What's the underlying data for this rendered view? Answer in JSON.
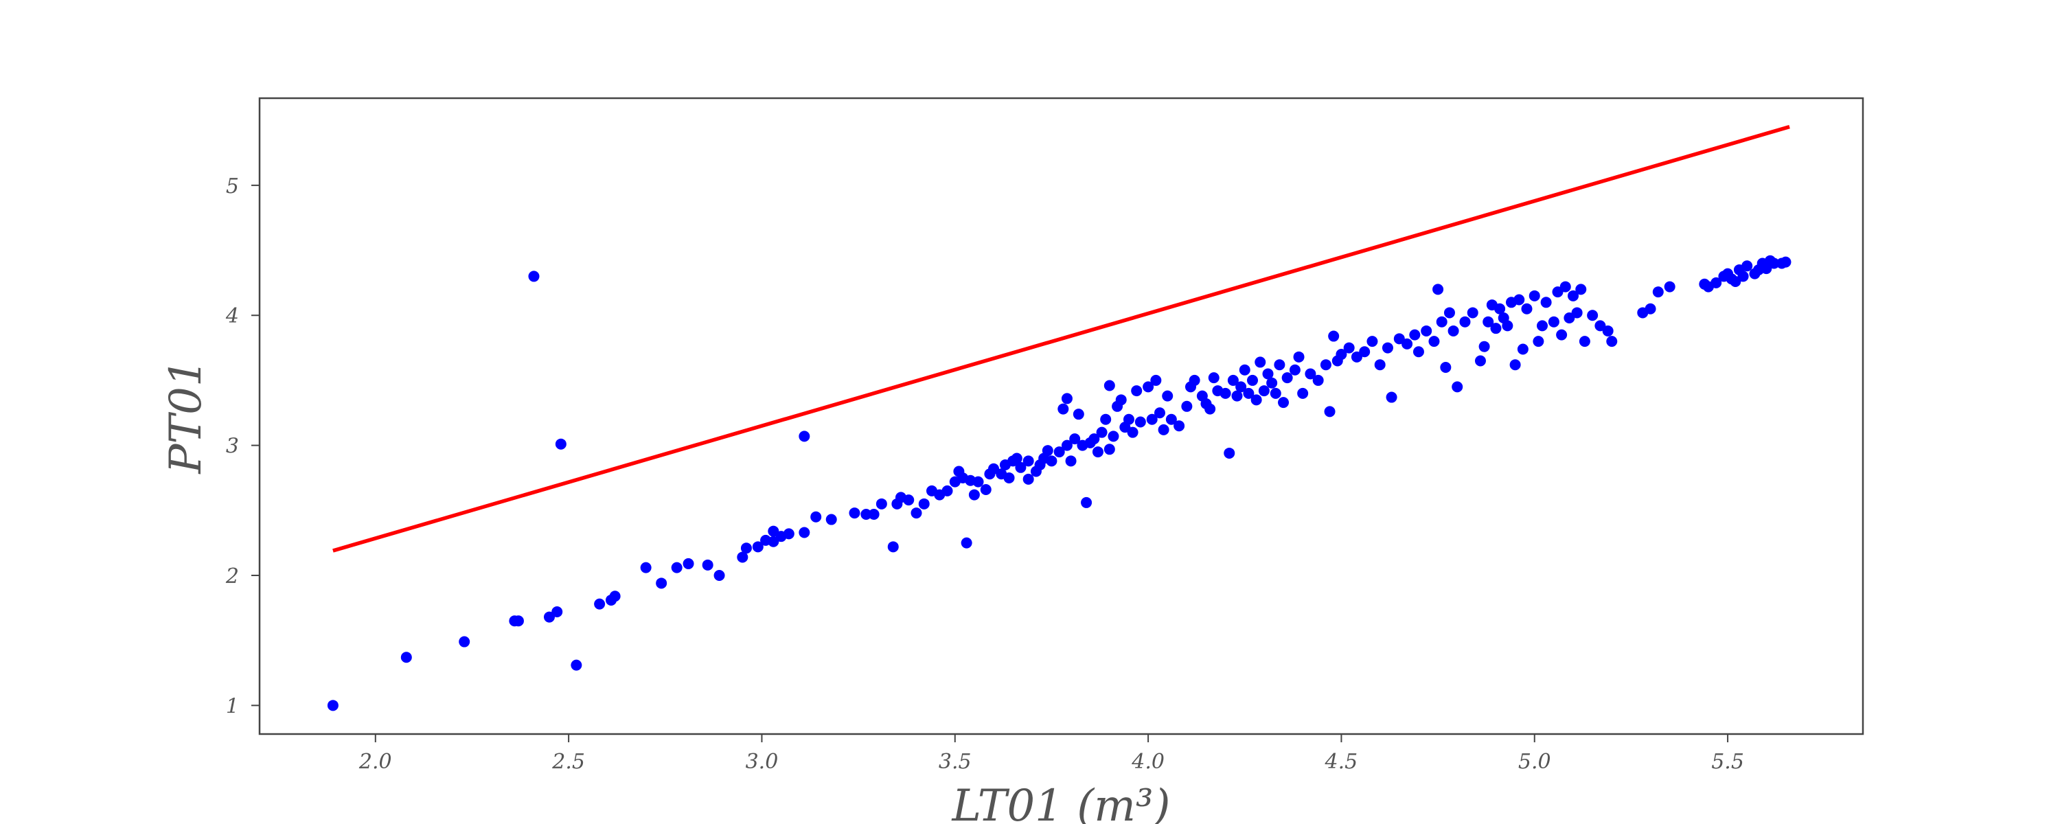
{
  "chart_data": {
    "type": "scatter",
    "title": "",
    "xlabel": "LT01 (m³)",
    "ylabel": "PT01",
    "xlim": [
      1.7,
      5.85
    ],
    "ylim": [
      0.78,
      5.67
    ],
    "xticks": [
      2.0,
      2.5,
      3.0,
      3.5,
      4.0,
      4.5,
      5.0,
      5.5
    ],
    "xtick_labels": [
      "2.0",
      "2.5",
      "3.0",
      "3.5",
      "4.0",
      "4.5",
      "5.0",
      "5.5"
    ],
    "yticks": [
      1,
      2,
      3,
      4,
      5
    ],
    "ytick_labels": [
      "1",
      "2",
      "3",
      "4",
      "5"
    ],
    "grid": false,
    "series": [
      {
        "name": "data",
        "kind": "scatter",
        "color": "#0000ff",
        "points": [
          [
            1.89,
            1.0
          ],
          [
            2.08,
            1.37
          ],
          [
            2.23,
            1.49
          ],
          [
            2.36,
            1.65
          ],
          [
            2.37,
            1.65
          ],
          [
            2.45,
            1.68
          ],
          [
            2.47,
            1.72
          ],
          [
            2.52,
            1.31
          ],
          [
            2.58,
            1.78
          ],
          [
            2.61,
            1.81
          ],
          [
            2.62,
            1.84
          ],
          [
            2.7,
            2.06
          ],
          [
            2.74,
            1.94
          ],
          [
            2.78,
            2.06
          ],
          [
            2.81,
            2.09
          ],
          [
            2.86,
            2.08
          ],
          [
            2.89,
            2.0
          ],
          [
            2.95,
            2.14
          ],
          [
            2.96,
            2.21
          ],
          [
            2.99,
            2.22
          ],
          [
            3.01,
            2.27
          ],
          [
            3.03,
            2.26
          ],
          [
            3.03,
            2.34
          ],
          [
            3.05,
            2.3
          ],
          [
            3.07,
            2.32
          ],
          [
            3.11,
            2.33
          ],
          [
            3.14,
            2.45
          ],
          [
            3.18,
            2.43
          ],
          [
            3.24,
            2.48
          ],
          [
            3.27,
            2.47
          ],
          [
            3.29,
            2.47
          ],
          [
            3.31,
            2.55
          ],
          [
            3.34,
            2.22
          ],
          [
            3.35,
            2.55
          ],
          [
            3.36,
            2.6
          ],
          [
            3.38,
            2.58
          ],
          [
            3.4,
            2.48
          ],
          [
            3.42,
            2.55
          ],
          [
            3.44,
            2.65
          ],
          [
            3.46,
            2.62
          ],
          [
            3.48,
            2.65
          ],
          [
            3.5,
            2.72
          ],
          [
            3.51,
            2.8
          ],
          [
            3.52,
            2.75
          ],
          [
            3.53,
            2.25
          ],
          [
            3.54,
            2.73
          ],
          [
            3.55,
            2.62
          ],
          [
            3.56,
            2.72
          ],
          [
            3.58,
            2.66
          ],
          [
            3.59,
            2.78
          ],
          [
            3.6,
            2.82
          ],
          [
            3.62,
            2.78
          ],
          [
            3.63,
            2.85
          ],
          [
            3.64,
            2.75
          ],
          [
            3.65,
            2.88
          ],
          [
            3.66,
            2.9
          ],
          [
            3.67,
            2.83
          ],
          [
            3.69,
            2.88
          ],
          [
            3.69,
            2.74
          ],
          [
            3.71,
            2.8
          ],
          [
            3.72,
            2.85
          ],
          [
            3.73,
            2.9
          ],
          [
            3.74,
            2.96
          ],
          [
            3.75,
            2.88
          ],
          [
            3.77,
            2.95
          ],
          [
            3.78,
            3.28
          ],
          [
            3.79,
            3.36
          ],
          [
            3.79,
            3.0
          ],
          [
            3.8,
            2.88
          ],
          [
            3.81,
            3.05
          ],
          [
            3.82,
            3.24
          ],
          [
            3.83,
            3.0
          ],
          [
            3.84,
            2.56
          ],
          [
            3.85,
            3.02
          ],
          [
            3.86,
            3.05
          ],
          [
            3.87,
            2.95
          ],
          [
            3.88,
            3.1
          ],
          [
            3.89,
            3.2
          ],
          [
            3.9,
            2.97
          ],
          [
            3.9,
            3.46
          ],
          [
            3.91,
            3.07
          ],
          [
            3.92,
            3.3
          ],
          [
            3.93,
            3.35
          ],
          [
            3.94,
            3.14
          ],
          [
            3.95,
            3.2
          ],
          [
            3.96,
            3.1
          ],
          [
            3.97,
            3.42
          ],
          [
            3.98,
            3.18
          ],
          [
            4.0,
            3.45
          ],
          [
            4.01,
            3.2
          ],
          [
            4.02,
            3.5
          ],
          [
            4.03,
            3.25
          ],
          [
            4.04,
            3.12
          ],
          [
            4.05,
            3.38
          ],
          [
            4.06,
            3.2
          ],
          [
            4.08,
            3.15
          ],
          [
            4.1,
            3.3
          ],
          [
            4.11,
            3.45
          ],
          [
            4.12,
            3.5
          ],
          [
            4.14,
            3.38
          ],
          [
            4.15,
            3.32
          ],
          [
            4.16,
            3.28
          ],
          [
            4.17,
            3.52
          ],
          [
            4.18,
            3.42
          ],
          [
            4.2,
            3.4
          ],
          [
            4.21,
            2.94
          ],
          [
            4.22,
            3.5
          ],
          [
            4.23,
            3.38
          ],
          [
            4.24,
            3.45
          ],
          [
            4.25,
            3.58
          ],
          [
            4.26,
            3.4
          ],
          [
            4.27,
            3.5
          ],
          [
            4.28,
            3.35
          ],
          [
            4.29,
            3.64
          ],
          [
            4.3,
            3.42
          ],
          [
            4.31,
            3.55
          ],
          [
            4.32,
            3.48
          ],
          [
            4.33,
            3.4
          ],
          [
            4.34,
            3.62
          ],
          [
            4.35,
            3.33
          ],
          [
            4.36,
            3.52
          ],
          [
            4.38,
            3.58
          ],
          [
            4.39,
            3.68
          ],
          [
            4.4,
            3.4
          ],
          [
            4.42,
            3.55
          ],
          [
            4.44,
            3.5
          ],
          [
            4.46,
            3.62
          ],
          [
            4.47,
            3.26
          ],
          [
            4.48,
            3.84
          ],
          [
            4.49,
            3.65
          ],
          [
            4.5,
            3.7
          ],
          [
            4.52,
            3.75
          ],
          [
            4.54,
            3.68
          ],
          [
            4.56,
            3.72
          ],
          [
            4.58,
            3.8
          ],
          [
            4.6,
            3.62
          ],
          [
            4.62,
            3.75
          ],
          [
            4.63,
            3.37
          ],
          [
            4.65,
            3.82
          ],
          [
            4.67,
            3.78
          ],
          [
            4.69,
            3.85
          ],
          [
            4.7,
            3.72
          ],
          [
            4.72,
            3.88
          ],
          [
            4.74,
            3.8
          ],
          [
            4.75,
            4.2
          ],
          [
            4.76,
            3.95
          ],
          [
            4.77,
            3.6
          ],
          [
            4.78,
            4.02
          ],
          [
            4.79,
            3.88
          ],
          [
            4.8,
            3.45
          ],
          [
            4.82,
            3.95
          ],
          [
            4.84,
            4.02
          ],
          [
            4.86,
            3.65
          ],
          [
            4.87,
            3.76
          ],
          [
            4.88,
            3.95
          ],
          [
            4.89,
            4.08
          ],
          [
            4.9,
            3.9
          ],
          [
            4.91,
            4.05
          ],
          [
            4.92,
            3.98
          ],
          [
            4.93,
            3.92
          ],
          [
            4.94,
            4.1
          ],
          [
            4.95,
            3.62
          ],
          [
            4.96,
            4.12
          ],
          [
            4.97,
            3.74
          ],
          [
            4.98,
            4.05
          ],
          [
            5.0,
            4.15
          ],
          [
            5.01,
            3.8
          ],
          [
            5.02,
            3.92
          ],
          [
            5.03,
            4.1
          ],
          [
            5.05,
            3.95
          ],
          [
            5.06,
            4.18
          ],
          [
            5.07,
            3.85
          ],
          [
            5.08,
            4.22
          ],
          [
            5.09,
            3.98
          ],
          [
            5.1,
            4.15
          ],
          [
            5.11,
            4.02
          ],
          [
            5.12,
            4.2
          ],
          [
            5.13,
            3.8
          ],
          [
            5.15,
            4.0
          ],
          [
            5.17,
            3.92
          ],
          [
            5.19,
            3.88
          ],
          [
            5.2,
            3.8
          ],
          [
            5.28,
            4.02
          ],
          [
            5.3,
            4.05
          ],
          [
            5.32,
            4.18
          ],
          [
            5.35,
            4.22
          ],
          [
            5.44,
            4.24
          ],
          [
            5.45,
            4.22
          ],
          [
            5.47,
            4.25
          ],
          [
            5.49,
            4.3
          ],
          [
            5.5,
            4.32
          ],
          [
            5.51,
            4.28
          ],
          [
            5.52,
            4.26
          ],
          [
            5.53,
            4.35
          ],
          [
            5.54,
            4.3
          ],
          [
            5.55,
            4.38
          ],
          [
            5.57,
            4.32
          ],
          [
            5.58,
            4.35
          ],
          [
            5.59,
            4.4
          ],
          [
            5.6,
            4.36
          ],
          [
            5.61,
            4.42
          ],
          [
            5.62,
            4.4
          ],
          [
            5.64,
            4.4
          ],
          [
            5.65,
            4.41
          ],
          [
            2.41,
            4.3
          ],
          [
            2.48,
            3.01
          ],
          [
            3.11,
            3.07
          ]
        ]
      },
      {
        "name": "fit",
        "kind": "line",
        "color": "#ff0000",
        "points": [
          [
            1.89,
            2.19
          ],
          [
            5.66,
            5.45
          ]
        ]
      }
    ]
  }
}
